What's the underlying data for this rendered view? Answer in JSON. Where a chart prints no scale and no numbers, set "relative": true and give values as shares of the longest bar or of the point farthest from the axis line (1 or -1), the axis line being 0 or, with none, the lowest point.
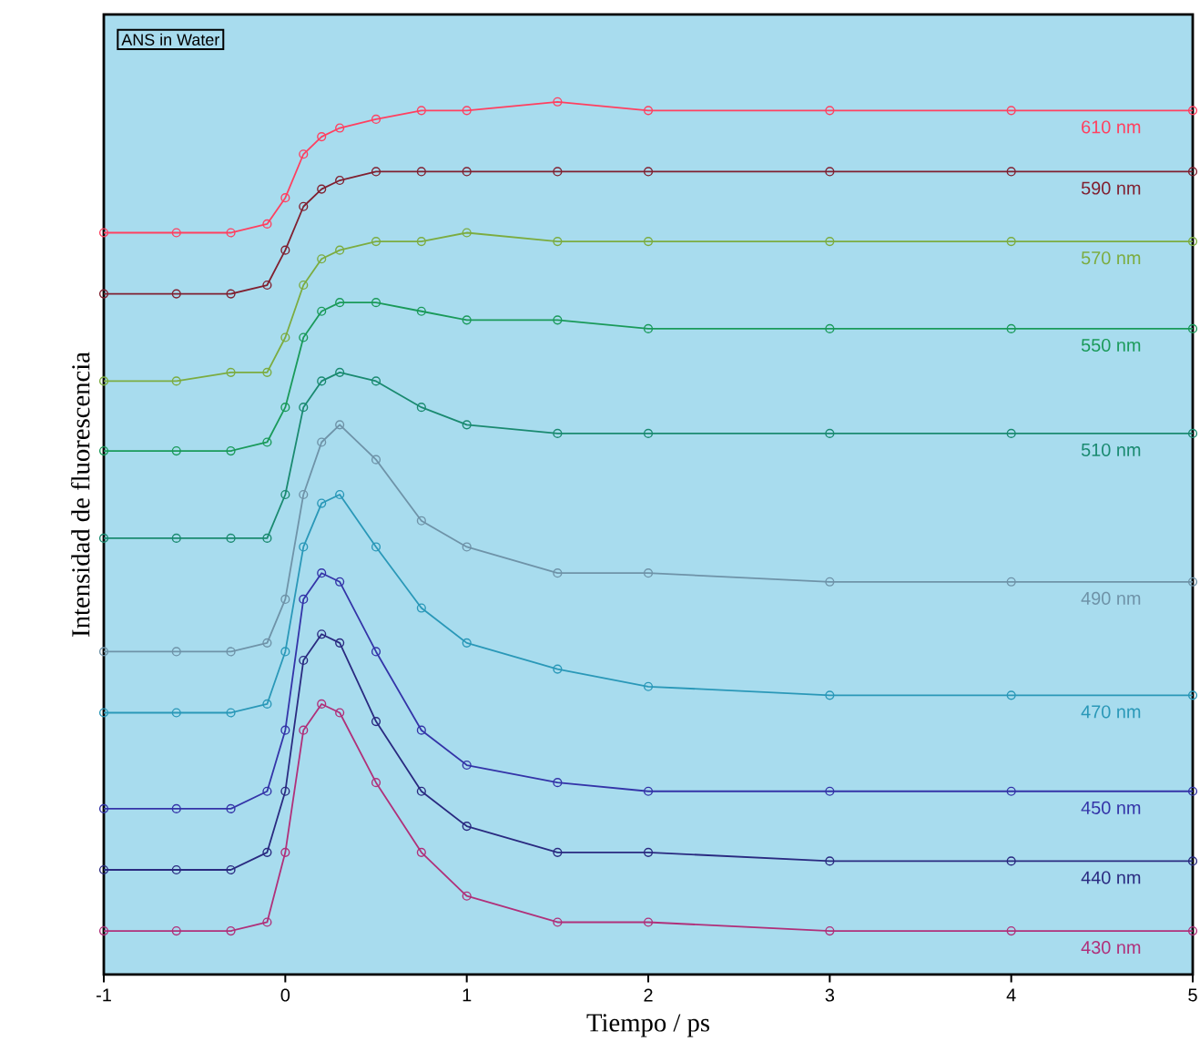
{
  "chart_data": {
    "type": "line",
    "relative": true,
    "xlabel": "Tiempo / ps",
    "ylabel": "Intensidad de fluorescencia",
    "annotations": [
      "ANS in Water"
    ],
    "x": [
      -1,
      -0.6,
      -0.3,
      -0.1,
      0,
      0.1,
      0.2,
      0.3,
      0.5,
      0.75,
      1,
      1.5,
      2,
      3,
      4,
      5
    ],
    "xlim": [
      -1,
      5
    ],
    "xticks": [
      -1,
      0,
      1,
      2,
      3,
      4,
      5
    ],
    "tick_labels": "x",
    "marker": "circle",
    "line_style": "solid",
    "series": [
      {
        "name": "430 nm",
        "color": "#b0307a",
        "values": [
          0.05,
          0.05,
          0.05,
          0.06,
          0.14,
          0.28,
          0.31,
          0.3,
          0.22,
          0.14,
          0.09,
          0.06,
          0.06,
          0.05,
          0.05,
          0.05
        ]
      },
      {
        "name": "440 nm",
        "color": "#2a2a80",
        "values": [
          0.12,
          0.12,
          0.12,
          0.14,
          0.21,
          0.36,
          0.39,
          0.38,
          0.29,
          0.21,
          0.17,
          0.14,
          0.14,
          0.13,
          0.13,
          0.13
        ]
      },
      {
        "name": "450 nm",
        "color": "#3434a8",
        "values": [
          0.19,
          0.19,
          0.19,
          0.21,
          0.28,
          0.43,
          0.46,
          0.45,
          0.37,
          0.28,
          0.24,
          0.22,
          0.21,
          0.21,
          0.21,
          0.21
        ]
      },
      {
        "name": "470 nm",
        "color": "#2a98b8",
        "values": [
          0.3,
          0.3,
          0.3,
          0.31,
          0.37,
          0.49,
          0.54,
          0.55,
          0.49,
          0.42,
          0.38,
          0.35,
          0.33,
          0.32,
          0.32,
          0.32
        ]
      },
      {
        "name": "490 nm",
        "color": "#6f93a8",
        "values": [
          0.37,
          0.37,
          0.37,
          0.38,
          0.43,
          0.55,
          0.61,
          0.63,
          0.59,
          0.52,
          0.49,
          0.46,
          0.46,
          0.45,
          0.45,
          0.45
        ]
      },
      {
        "name": "510 nm",
        "color": "#1a8a70",
        "values": [
          0.5,
          0.5,
          0.5,
          0.5,
          0.55,
          0.65,
          0.68,
          0.69,
          0.68,
          0.65,
          0.63,
          0.62,
          0.62,
          0.62,
          0.62,
          0.62
        ]
      },
      {
        "name": "550 nm",
        "color": "#1a9a5a",
        "values": [
          0.6,
          0.6,
          0.6,
          0.61,
          0.65,
          0.73,
          0.76,
          0.77,
          0.77,
          0.76,
          0.75,
          0.75,
          0.74,
          0.74,
          0.74,
          0.74
        ]
      },
      {
        "name": "570 nm",
        "color": "#7cac40",
        "values": [
          0.68,
          0.68,
          0.69,
          0.69,
          0.73,
          0.79,
          0.82,
          0.83,
          0.84,
          0.84,
          0.85,
          0.84,
          0.84,
          0.84,
          0.84,
          0.84
        ]
      },
      {
        "name": "590 nm",
        "color": "#802030",
        "values": [
          0.78,
          0.78,
          0.78,
          0.79,
          0.83,
          0.88,
          0.9,
          0.91,
          0.92,
          0.92,
          0.92,
          0.92,
          0.92,
          0.92,
          0.92,
          0.92
        ]
      },
      {
        "name": "610 nm",
        "color": "#ff4060",
        "values": [
          0.85,
          0.85,
          0.85,
          0.86,
          0.89,
          0.94,
          0.96,
          0.97,
          0.98,
          0.99,
          0.99,
          1.0,
          0.99,
          0.99,
          0.99,
          0.99
        ]
      }
    ]
  }
}
